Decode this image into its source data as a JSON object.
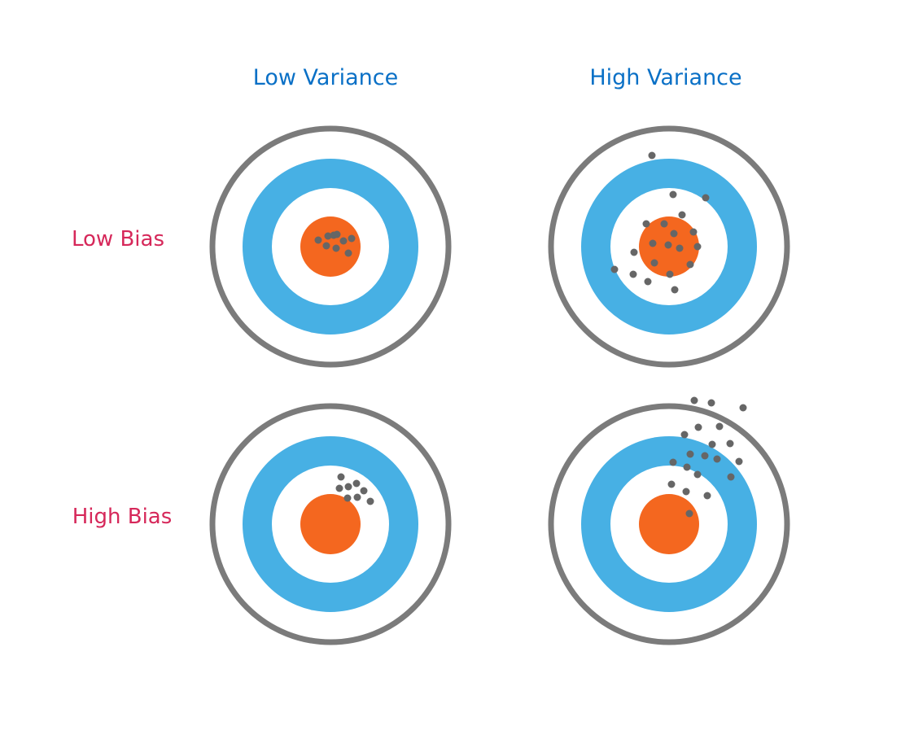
{
  "column_headers": [
    "Low Variance",
    "High Variance"
  ],
  "row_headers": [
    "Low Bias",
    "High Bias"
  ],
  "colors": {
    "outer_ring": "#7b7b7b",
    "middle_ring": "#47b0e4",
    "bullseye": "#f4671f",
    "background": "#ffffff",
    "shot": "#666666",
    "column_header": "#0a70c6",
    "row_header": "#d6285a"
  },
  "targets": [
    {
      "row_label": "Low Bias",
      "col_label": "Low Variance",
      "shots": [
        [
          -15,
          -8
        ],
        [
          -3,
          -13
        ],
        [
          4,
          -14
        ],
        [
          8,
          -15
        ],
        [
          16,
          -7
        ],
        [
          26,
          -10
        ],
        [
          -5,
          -1
        ],
        [
          7,
          2
        ],
        [
          22,
          8
        ]
      ]
    },
    {
      "row_label": "Low Bias",
      "col_label": "High Variance",
      "shots": [
        [
          -21,
          -112
        ],
        [
          5,
          -64
        ],
        [
          45,
          -60
        ],
        [
          16,
          -39
        ],
        [
          -28,
          -28
        ],
        [
          -6,
          -28
        ],
        [
          6,
          -16
        ],
        [
          30,
          -18
        ],
        [
          -20,
          -4
        ],
        [
          -1,
          -2
        ],
        [
          13,
          2
        ],
        [
          35,
          0
        ],
        [
          -43,
          7
        ],
        [
          -18,
          20
        ],
        [
          26,
          22
        ],
        [
          -67,
          28
        ],
        [
          -44,
          34
        ],
        [
          1,
          34
        ],
        [
          -26,
          43
        ],
        [
          7,
          53
        ]
      ]
    },
    {
      "row_label": "High Bias",
      "col_label": "Low Variance",
      "shots": [
        [
          13,
          -58
        ],
        [
          32,
          -50
        ],
        [
          11,
          -44
        ],
        [
          22,
          -46
        ],
        [
          41,
          -41
        ],
        [
          21,
          -32
        ],
        [
          33,
          -33
        ],
        [
          49,
          -28
        ]
      ]
    },
    {
      "row_label": "High Bias",
      "col_label": "High Variance",
      "shots": [
        [
          31,
          -152
        ],
        [
          52,
          -149
        ],
        [
          91,
          -143
        ],
        [
          36,
          -119
        ],
        [
          62,
          -120
        ],
        [
          19,
          -110
        ],
        [
          53,
          -98
        ],
        [
          75,
          -99
        ],
        [
          26,
          -86
        ],
        [
          44,
          -84
        ],
        [
          59,
          -80
        ],
        [
          86,
          -77
        ],
        [
          5,
          -76
        ],
        [
          22,
          -70
        ],
        [
          35,
          -61
        ],
        [
          76,
          -58
        ],
        [
          3,
          -49
        ],
        [
          21,
          -40
        ],
        [
          47,
          -35
        ],
        [
          25,
          -13
        ]
      ]
    }
  ]
}
